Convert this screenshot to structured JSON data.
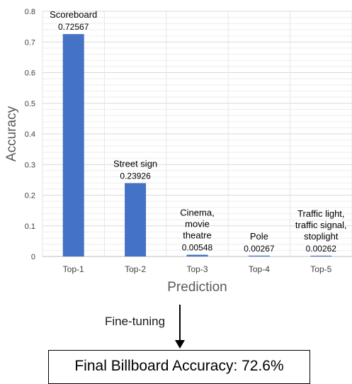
{
  "chart_data": {
    "type": "bar",
    "categories": [
      "Top-1",
      "Top-2",
      "Top-3",
      "Top-4",
      "Top-5"
    ],
    "values": [
      0.72567,
      0.23926,
      0.00548,
      0.00267,
      0.00262
    ],
    "value_labels": [
      "0.72567",
      "0.23926",
      "0.00548",
      "0.00267",
      "0.00262"
    ],
    "class_labels": [
      [
        "Scoreboard"
      ],
      [
        "Street sign"
      ],
      [
        "Cinema,",
        "movie",
        "theatre"
      ],
      [
        "Pole"
      ],
      [
        "Traffic light,",
        "traffic signal,",
        "stoplight"
      ]
    ],
    "xlabel": "Prediction",
    "ylabel": "Accuracy",
    "ylim": [
      0,
      0.8
    ],
    "yticks": [
      "0",
      "0.1",
      "0.2",
      "0.3",
      "0.4",
      "0.5",
      "0.6",
      "0.7",
      "0.8"
    ],
    "grid": true,
    "bar_color": "#4472C4"
  },
  "annotation": {
    "arrow_label": "Fine-tuning",
    "result_text": "Final Billboard Accuracy: 72.6%"
  }
}
